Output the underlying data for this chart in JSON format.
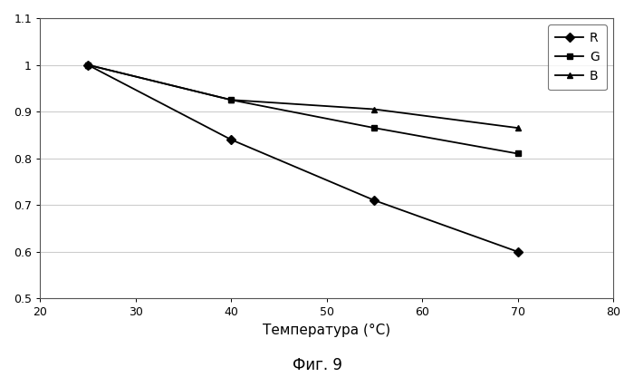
{
  "R": {
    "x": [
      25,
      40,
      55,
      70
    ],
    "y": [
      1.0,
      0.84,
      0.71,
      0.6
    ]
  },
  "G": {
    "x": [
      25,
      40,
      55,
      70
    ],
    "y": [
      1.0,
      0.925,
      0.865,
      0.81
    ]
  },
  "B": {
    "x": [
      25,
      40,
      55,
      70
    ],
    "y": [
      1.0,
      0.925,
      0.905,
      0.865
    ]
  },
  "xlim": [
    20,
    80
  ],
  "ylim": [
    0.5,
    1.1
  ],
  "xticks": [
    20,
    30,
    40,
    50,
    60,
    70,
    80
  ],
  "yticks": [
    0.5,
    0.6,
    0.7,
    0.8,
    0.9,
    1.0,
    1.1
  ],
  "ytick_labels": [
    "0.5",
    "0.6",
    "0.7",
    "0.8",
    "0.9",
    "1",
    "1.1"
  ],
  "xlabel": "Температура (°C)",
  "fig_label": "Фиг. 9",
  "line_color": "#000000",
  "marker_R": "D",
  "marker_G": "s",
  "marker_B": "^",
  "legend_labels": [
    "R",
    "G",
    "B"
  ],
  "bg_color": "#ffffff",
  "grid_color": "#cccccc",
  "label_fontsize": 11,
  "legend_fontsize": 10,
  "fig_label_fontsize": 12,
  "tick_fontsize": 9
}
